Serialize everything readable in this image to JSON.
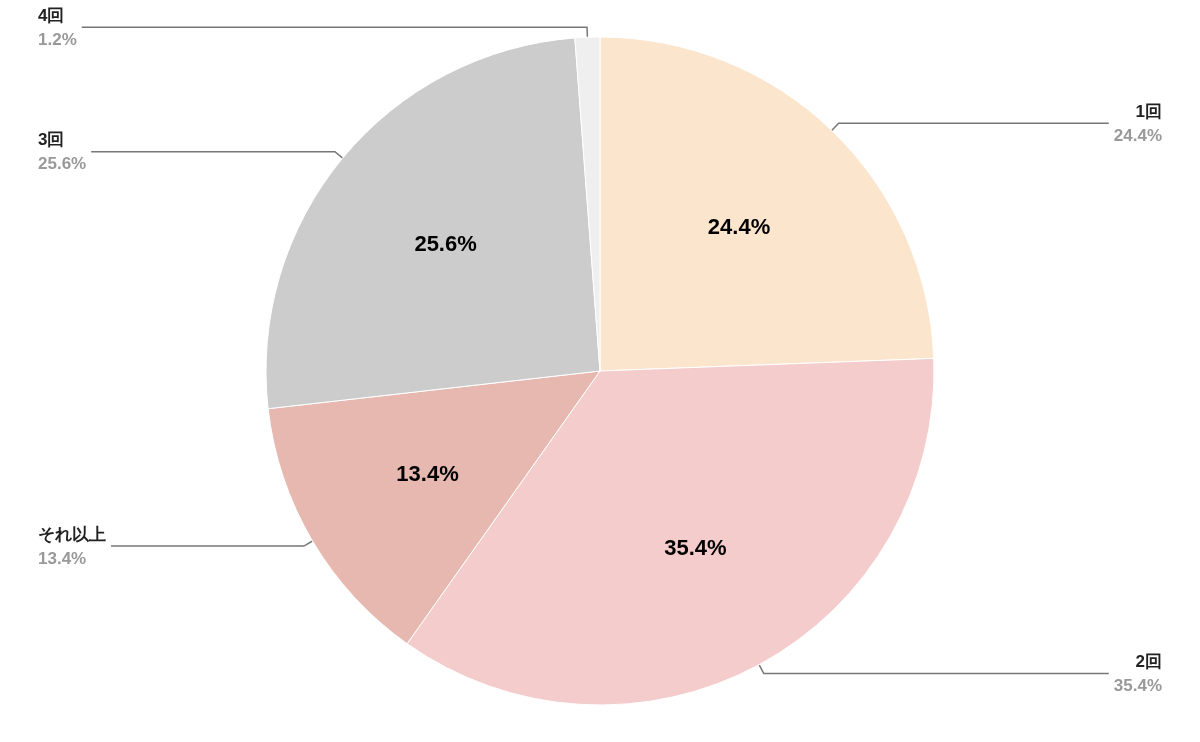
{
  "chart_data": {
    "type": "pie",
    "categories": [
      "1回",
      "2回",
      "それ以上",
      "3回",
      "4回"
    ],
    "values": [
      24.4,
      35.4,
      13.4,
      25.6,
      1.2
    ],
    "colors": [
      "#fce5cd",
      "#f4cccc",
      "#e6b8af",
      "#cccccc",
      "#efefef"
    ],
    "value_labels": [
      "24.4%",
      "35.4%",
      "13.4%",
      "25.6%",
      "1.2%"
    ],
    "legend": false
  }
}
